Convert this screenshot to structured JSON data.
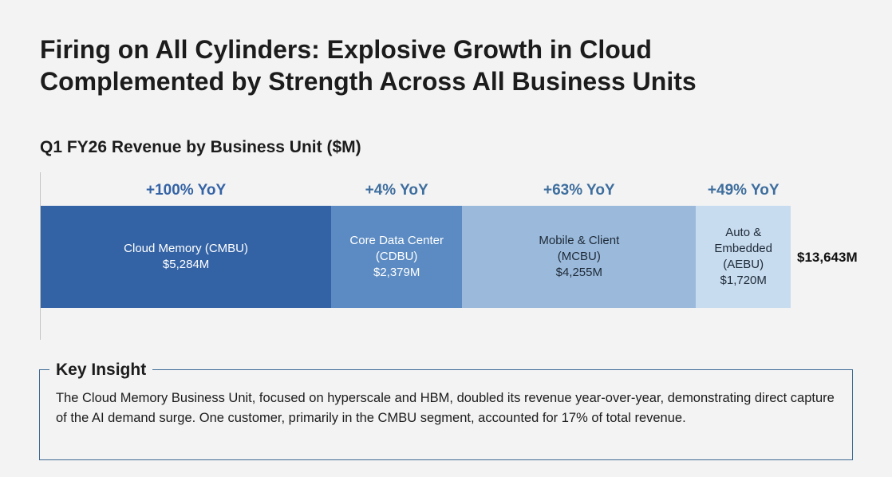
{
  "title_lines": [
    "Firing on All Cylinders: Explosive Growth in Cloud",
    "Complemented by Strength Across All Business Units"
  ],
  "chart_data": {
    "type": "bar",
    "orientation": "horizontal-stacked",
    "title": "Q1 FY26 Revenue by Business Unit ($M)",
    "unit": "$M",
    "segments": [
      {
        "name_lines": [
          "Cloud Memory (CMBU)"
        ],
        "value": 5284,
        "value_label": "$5,284M",
        "yoy": "+100% YoY",
        "color": "#3463a5",
        "text_color": "#ffffff",
        "yoy_color": "#3463a5"
      },
      {
        "name_lines": [
          "Core Data Center",
          "(CDBU)"
        ],
        "value": 2379,
        "value_label": "$2,379M",
        "yoy": "+4% YoY",
        "color": "#5b8bc2",
        "text_color": "#ffffff",
        "yoy_color": "#3e6e9e"
      },
      {
        "name_lines": [
          "Mobile & Client",
          "(MCBU)"
        ],
        "value": 4255,
        "value_label": "$4,255M",
        "yoy": "+63% YoY",
        "color": "#9bbadb",
        "text_color": "#1e2a38",
        "yoy_color": "#3e6e9e"
      },
      {
        "name_lines": [
          "Auto &",
          "Embedded",
          "(AEBU)"
        ],
        "value": 1720,
        "value_label": "$1,720M",
        "yoy": "+49% YoY",
        "color": "#c8dcef",
        "text_color": "#1e2a38",
        "yoy_color": "#3e6e9e"
      }
    ],
    "total_value": 13643,
    "total_label": "$13,643M"
  },
  "insight": {
    "title": "Key Insight",
    "text": "The Cloud Memory Business Unit, focused on hyperscale and HBM, doubled its revenue year-over-year, demonstrating direct capture of the AI demand surge.  One customer, primarily in the CMBU segment, accounted for 17% of total revenue."
  }
}
